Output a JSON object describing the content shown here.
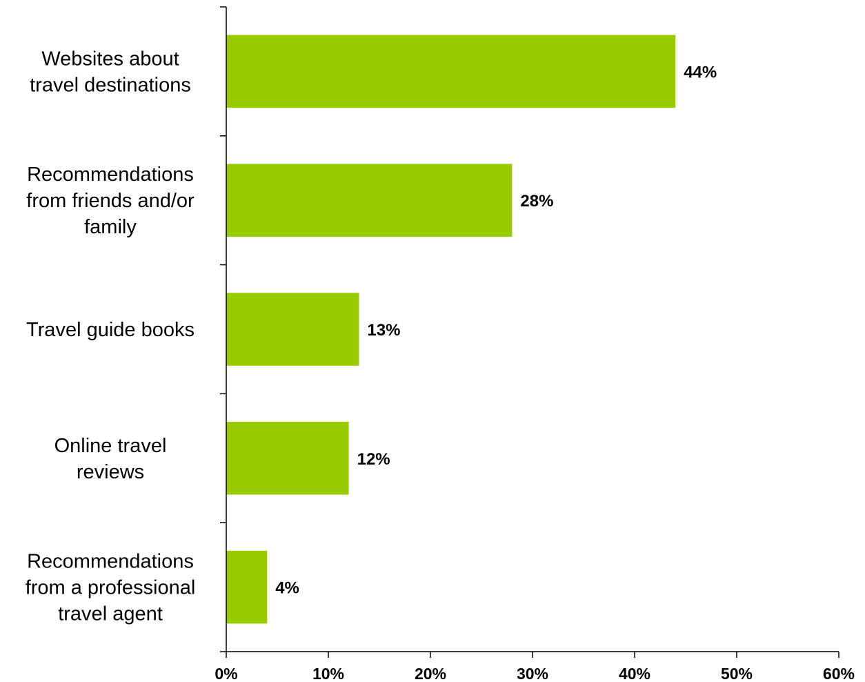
{
  "chart_data": {
    "type": "bar",
    "orientation": "horizontal",
    "categories": [
      [
        "Websites about",
        "travel destinations"
      ],
      [
        "Recommendations",
        "from friends and/or",
        "family"
      ],
      [
        "Travel guide books"
      ],
      [
        "Online travel",
        "reviews"
      ],
      [
        "Recommendations",
        "from a professional",
        "travel agent"
      ]
    ],
    "values": [
      44,
      28,
      13,
      12,
      4
    ],
    "data_labels": [
      "44%",
      "28%",
      "13%",
      "12%",
      "4%"
    ],
    "xlim": [
      0,
      60
    ],
    "x_ticks": [
      0,
      10,
      20,
      30,
      40,
      50,
      60
    ],
    "x_tick_labels": [
      "0%",
      "10%",
      "20%",
      "30%",
      "40%",
      "50%",
      "60%"
    ],
    "bar_color": "#99cc00",
    "grid": false,
    "legend": "none"
  }
}
